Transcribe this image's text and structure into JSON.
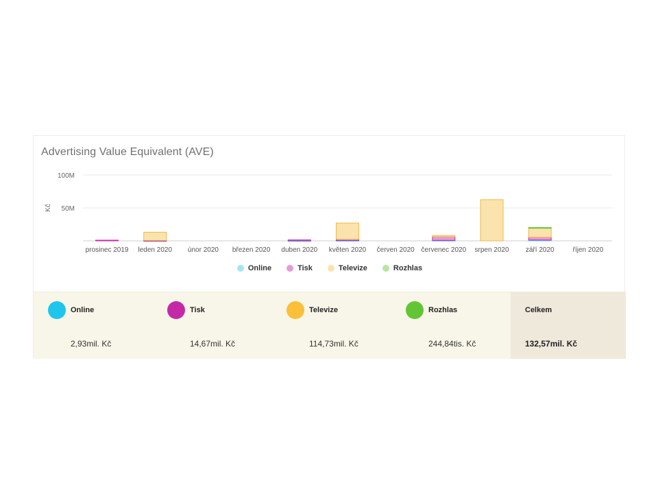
{
  "title": "Advertising Value Equivalent (AVE)",
  "legend": [
    {
      "label": "Online",
      "color": "#a6e4f2"
    },
    {
      "label": "Tisk",
      "color": "#e79ad8"
    },
    {
      "label": "Televize",
      "color": "#fbe3ad"
    },
    {
      "label": "Rozhlas",
      "color": "#b6e6a2"
    }
  ],
  "summary": {
    "items": [
      {
        "name": "Online",
        "value": "2,93mil. Kč",
        "color": "#1ec6ec"
      },
      {
        "name": "Tisk",
        "value": "14,67mil. Kč",
        "color": "#c42aa6"
      },
      {
        "name": "Televize",
        "value": "114,73mil. Kč",
        "color": "#fbbf3a"
      },
      {
        "name": "Rozhlas",
        "value": "244,84tis. Kč",
        "color": "#62c634"
      }
    ],
    "total": {
      "name": "Celkem",
      "value": "132,57mil. Kč"
    }
  },
  "chart_data": {
    "type": "bar",
    "stacked": true,
    "title": "Advertising Value Equivalent (AVE)",
    "ylabel": "Kč",
    "xlabel": "",
    "ylim": [
      0,
      100000000
    ],
    "yticks": [
      {
        "value": 50000000,
        "label": "50M"
      },
      {
        "value": 100000000,
        "label": "100M"
      }
    ],
    "grid": true,
    "legend_position": "bottom",
    "categories": [
      "prosinec 2019",
      "leden 2020",
      "únor 2020",
      "březen 2020",
      "duben 2020",
      "květen 2020",
      "červen 2020",
      "červenec 2020",
      "srpen 2020",
      "září 2020",
      "říjen 2020"
    ],
    "series": [
      {
        "name": "Online",
        "fill": "#a6e4f2",
        "stroke": "#4fc7e8",
        "values": [
          0,
          300000,
          0,
          0,
          200000,
          500000,
          0,
          700000,
          0,
          1200000,
          0
        ]
      },
      {
        "name": "Tisk",
        "fill": "#e79ad8",
        "stroke": "#c42aa6",
        "values": [
          1000000,
          300000,
          0,
          0,
          1200000,
          2000000,
          0,
          5500000,
          0,
          4200000,
          0
        ]
      },
      {
        "name": "Televize",
        "fill": "#fbe3ad",
        "stroke": "#f0b94a",
        "values": [
          0,
          12500000,
          0,
          0,
          0,
          24500000,
          0,
          1800000,
          62500000,
          14500000,
          0
        ]
      },
      {
        "name": "Rozhlas",
        "fill": "#b6e6a2",
        "stroke": "#62c634",
        "values": [
          0,
          0,
          0,
          0,
          0,
          0,
          0,
          0,
          0,
          240000,
          0
        ]
      }
    ]
  }
}
